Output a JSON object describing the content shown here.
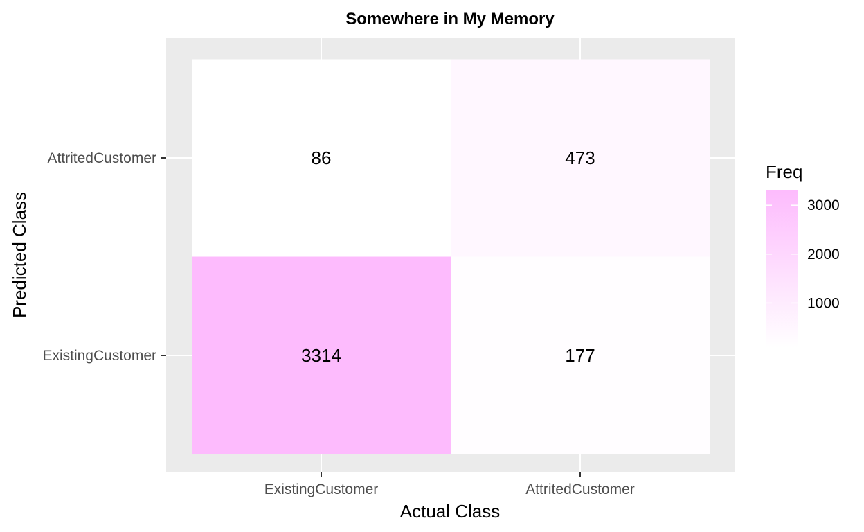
{
  "chart_data": {
    "type": "heatmap",
    "title": "Somewhere in My Memory",
    "xlabel": "Actual Class",
    "ylabel": "Predicted Class",
    "x_categories": [
      "ExistingCustomer",
      "AttritedCustomer"
    ],
    "y_categories": [
      "ExistingCustomer",
      "AttritedCustomer"
    ],
    "cells": [
      {
        "x": "ExistingCustomer",
        "y": "ExistingCustomer",
        "value": 3314
      },
      {
        "x": "AttritedCustomer",
        "y": "ExistingCustomer",
        "value": 177
      },
      {
        "x": "ExistingCustomer",
        "y": "AttritedCustomer",
        "value": 86
      },
      {
        "x": "AttritedCustomer",
        "y": "AttritedCustomer",
        "value": 473
      }
    ],
    "legend": {
      "title": "Freq",
      "position": "right",
      "ticks": [
        1000,
        2000,
        3000
      ],
      "tick_labels": [
        "1000",
        "2000",
        "3000"
      ]
    },
    "colors": {
      "low": "#ffffff",
      "high": "#fdbbfd",
      "panel_background": "#ebebeb",
      "gridline": "#ffffff"
    },
    "grid": true
  }
}
